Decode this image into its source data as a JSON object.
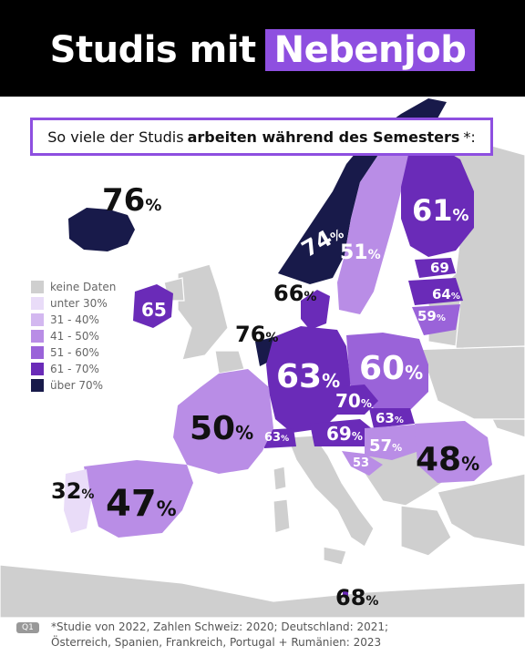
{
  "title": {
    "plain": "Studis mit",
    "highlight": "Nebenjob"
  },
  "subtitle": {
    "pre": "So viele der Studis",
    "bold": "arbeiten während des Semesters",
    "post": "*:"
  },
  "legend": [
    {
      "label": "keine Daten",
      "color": "#cfcfcf"
    },
    {
      "label": "unter 30%",
      "color": "#e9dcf8"
    },
    {
      "label": "31 - 40%",
      "color": "#d3b8f0"
    },
    {
      "label": "41 - 50%",
      "color": "#b98de6"
    },
    {
      "label": "51 - 60%",
      "color": "#9a63d9"
    },
    {
      "label": "61 - 70%",
      "color": "#6a2bb8"
    },
    {
      "label": "über 70%",
      "color": "#181a4a"
    }
  ],
  "values": {
    "iceland": {
      "num": "76",
      "unit": "%"
    },
    "norway": {
      "num": "74",
      "unit": "%"
    },
    "sweden": {
      "num": "51",
      "unit": "%"
    },
    "finland": {
      "num": "61",
      "unit": "%"
    },
    "estonia": {
      "num": "69",
      "unit": ""
    },
    "latvia": {
      "num": "64",
      "unit": "%"
    },
    "lithuania": {
      "num": "59",
      "unit": "%"
    },
    "denmark": {
      "num": "66",
      "unit": "%"
    },
    "ireland": {
      "num": "65",
      "unit": ""
    },
    "netherlands": {
      "num": "76",
      "unit": "%"
    },
    "germany": {
      "num": "63",
      "unit": "%"
    },
    "poland": {
      "num": "60",
      "unit": "%"
    },
    "czechia": {
      "num": "70",
      "unit": "%"
    },
    "slovakia": {
      "num": "63",
      "unit": "%"
    },
    "austria": {
      "num": "69",
      "unit": "%"
    },
    "switzerland": {
      "num": "63",
      "unit": "%"
    },
    "hungary": {
      "num": "57",
      "unit": "%"
    },
    "croatia": {
      "num": "53",
      "unit": ""
    },
    "romania": {
      "num": "48",
      "unit": "%"
    },
    "france": {
      "num": "50",
      "unit": "%"
    },
    "spain": {
      "num": "47",
      "unit": "%"
    },
    "portugal": {
      "num": "32",
      "unit": "%"
    },
    "malta": {
      "num": "68",
      "unit": "%"
    }
  },
  "footer": {
    "badge": "Q1",
    "line1": "*Studie von 2022, Zahlen Schweiz: 2020; Deutschland: 2021;",
    "line2": "Österreich, Spanien, Frankreich, Portugal + Rumänien: 2023"
  },
  "colors": {
    "accent": "#8e4fe0",
    "nodata": "#cfcfcf"
  }
}
